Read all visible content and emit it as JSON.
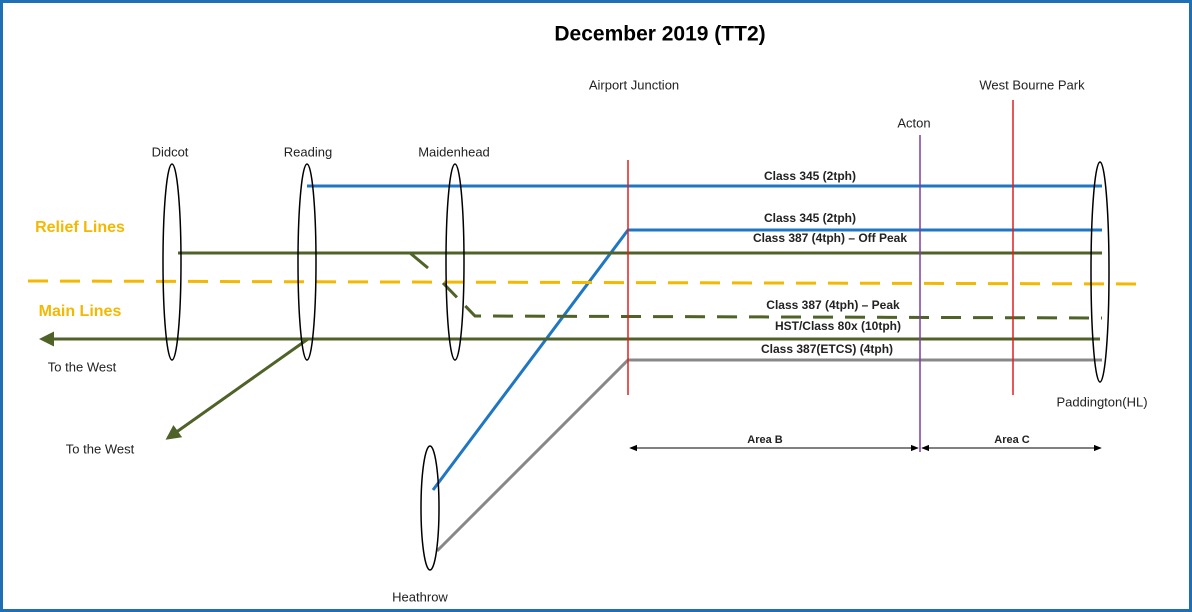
{
  "title": "December 2019 (TT2)",
  "stations": {
    "didcot": "Didcot",
    "reading": "Reading",
    "maidenhead": "Maidenhead",
    "airport_junction": "Airport Junction",
    "acton": "Acton",
    "west_bourne_park": "West Bourne Park",
    "heathrow": "Heathrow",
    "paddington": "Paddington(HL)"
  },
  "sides": {
    "relief": "Relief Lines",
    "main": "Main Lines",
    "west1": "To the West",
    "west2": "To the West"
  },
  "services": [
    "Class 345 (2tph)",
    "Class 345 (2tph)",
    "Class 387 (4tph) – Off Peak",
    "Class 387 (4tph) – Peak",
    "HST/Class 80x (10tph)",
    "Class 387(ETCS) (4tph)"
  ],
  "areas": [
    "Area B",
    "Area C"
  ]
}
